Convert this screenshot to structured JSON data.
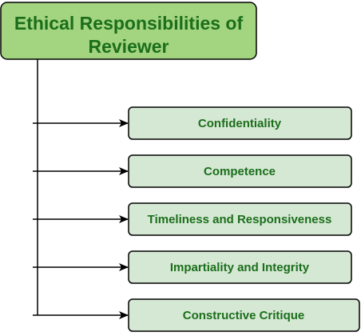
{
  "diagram": {
    "root": {
      "line1": "Ethical Responsibilities of",
      "line2": "Reviewer"
    },
    "items": [
      "Confidentiality",
      "Competence",
      "Timeliness and Responsiveness",
      "Impartiality and Integrity",
      "Constructive Critique"
    ]
  },
  "colors": {
    "root_fill": "#a3d47f",
    "item_fill": "#d5e8d4",
    "text": "#1b6e1b",
    "stroke": "#000000"
  }
}
